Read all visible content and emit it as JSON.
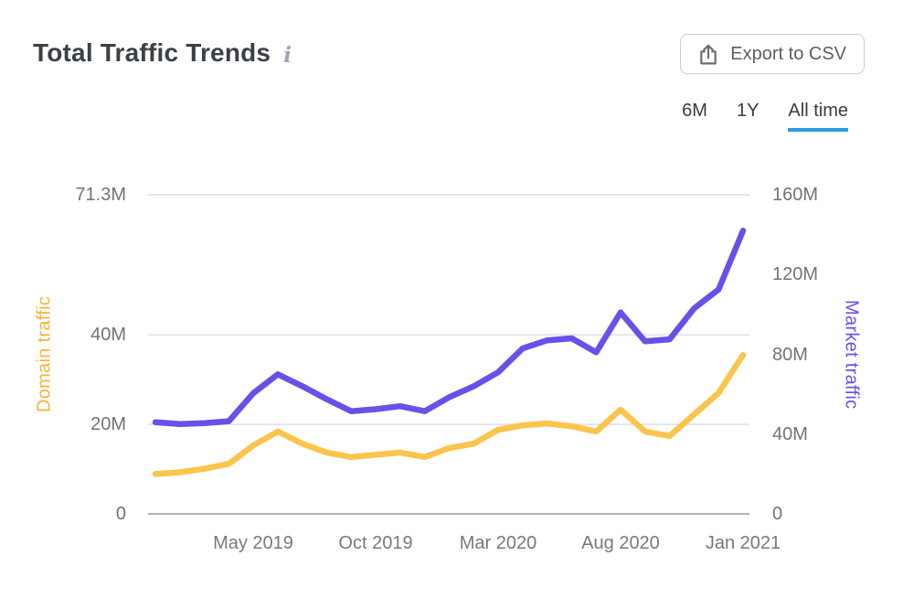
{
  "header": {
    "title": "Total Traffic Trends",
    "info_icon": "i",
    "export_button": {
      "label": "Export to CSV",
      "icon": "upload-icon"
    }
  },
  "tabs": [
    {
      "label": "6M",
      "active": false
    },
    {
      "label": "1Y",
      "active": false
    },
    {
      "label": "All time",
      "active": true
    }
  ],
  "colors": {
    "domain_line": "#FBC44D",
    "domain_label": "#F7B33C",
    "market_line": "#6950E8",
    "market_label": "#6C50E8",
    "tab_underline": "#2E9BDB",
    "grid": "#E3E6E9",
    "axis_line": "#AEB3B7",
    "tick_text": "#6F7478"
  },
  "chart_data": {
    "type": "line",
    "title": "Total Traffic Trends",
    "x": [
      "Jan 2019",
      "Feb 2019",
      "Mar 2019",
      "Apr 2019",
      "May 2019",
      "Jun 2019",
      "Jul 2019",
      "Aug 2019",
      "Sep 2019",
      "Oct 2019",
      "Nov 2019",
      "Dec 2019",
      "Jan 2020",
      "Feb 2020",
      "Mar 2020",
      "Apr 2020",
      "May 2020",
      "Jun 2020",
      "Jul 2020",
      "Aug 2020",
      "Sep 2020",
      "Oct 2020",
      "Nov 2020",
      "Dec 2020",
      "Jan 2021"
    ],
    "x_ticks": [
      {
        "index": 4,
        "label": "May 2019"
      },
      {
        "index": 9,
        "label": "Oct 2019"
      },
      {
        "index": 14,
        "label": "Mar 2020"
      },
      {
        "index": 19,
        "label": "Aug 2020"
      },
      {
        "index": 24,
        "label": "Jan 2021"
      }
    ],
    "series": [
      {
        "name": "Domain traffic",
        "axis": "left",
        "unit": "M",
        "values": [
          8.9,
          9.3,
          10.1,
          11.2,
          15.3,
          18.4,
          15.7,
          13.7,
          12.7,
          13.2,
          13.7,
          12.7,
          14.7,
          15.7,
          18.8,
          19.8,
          20.2,
          19.6,
          18.4,
          23.3,
          18.4,
          17.4,
          22.2,
          27.0,
          35.5
        ]
      },
      {
        "name": "Market traffic",
        "axis": "right",
        "unit": "M",
        "values": [
          46,
          45,
          45.5,
          46.5,
          60.5,
          70,
          64,
          57.5,
          51.5,
          52.5,
          54,
          51.5,
          58.5,
          64,
          71,
          83,
          87,
          88,
          81,
          101,
          86.5,
          87.5,
          103,
          112.5,
          142
        ]
      }
    ],
    "left_axis": {
      "title": "Domain traffic",
      "max": 71.3,
      "ticks": [
        {
          "value": 0,
          "label": "0"
        },
        {
          "value": 20,
          "label": "20M"
        },
        {
          "value": 40,
          "label": "40M"
        },
        {
          "value": 71.3,
          "label": "71.3M"
        }
      ]
    },
    "right_axis": {
      "title": "Market traffic",
      "max": 160,
      "ticks": [
        {
          "value": 0,
          "label": "0"
        },
        {
          "value": 40,
          "label": "40M"
        },
        {
          "value": 80,
          "label": "80M"
        },
        {
          "value": 120,
          "label": "120M"
        },
        {
          "value": 160,
          "label": "160M"
        }
      ]
    },
    "grid": "horizontal-only",
    "legend_position": "axis-titles"
  }
}
